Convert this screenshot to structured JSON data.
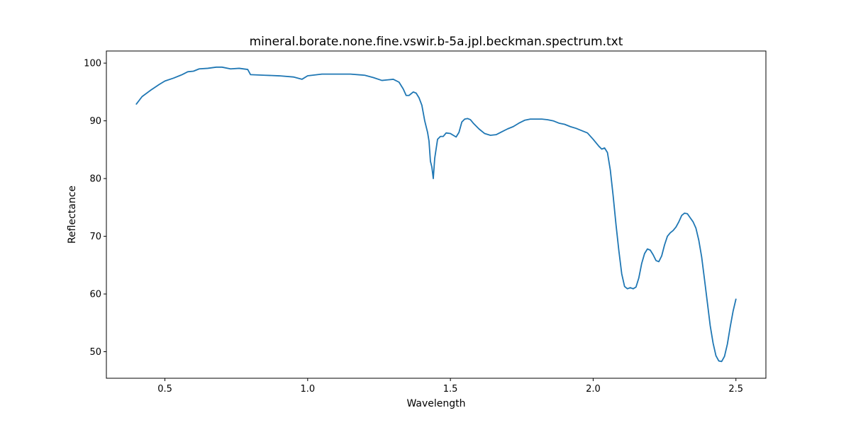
{
  "chart_data": {
    "type": "line",
    "title": "mineral.borate.none.fine.vswir.b-5a.jpl.beckman.spectrum.txt",
    "xlabel": "Wavelength",
    "ylabel": "Reflectance",
    "xlim": [
      0.295,
      2.605
    ],
    "ylim": [
      45.4,
      102.1
    ],
    "xticks": [
      0.5,
      1.0,
      1.5,
      2.0,
      2.5
    ],
    "xtick_labels": [
      "0.5",
      "1.0",
      "1.5",
      "2.0",
      "2.5"
    ],
    "yticks": [
      50,
      60,
      70,
      80,
      90,
      100
    ],
    "ytick_labels": [
      "50",
      "60",
      "70",
      "80",
      "90",
      "100"
    ],
    "grid": false,
    "series": [
      {
        "color": "#1f77b4",
        "points": [
          [
            0.4,
            92.9
          ],
          [
            0.42,
            94.2
          ],
          [
            0.45,
            95.3
          ],
          [
            0.48,
            96.3
          ],
          [
            0.5,
            96.9
          ],
          [
            0.53,
            97.4
          ],
          [
            0.56,
            98.0
          ],
          [
            0.58,
            98.5
          ],
          [
            0.6,
            98.6
          ],
          [
            0.62,
            99.0
          ],
          [
            0.65,
            99.1
          ],
          [
            0.68,
            99.3
          ],
          [
            0.7,
            99.3
          ],
          [
            0.73,
            99.0
          ],
          [
            0.76,
            99.1
          ],
          [
            0.79,
            98.9
          ],
          [
            0.8,
            98.0
          ],
          [
            0.85,
            97.9
          ],
          [
            0.9,
            97.8
          ],
          [
            0.95,
            97.6
          ],
          [
            0.98,
            97.2
          ],
          [
            1.0,
            97.8
          ],
          [
            1.05,
            98.1
          ],
          [
            1.1,
            98.1
          ],
          [
            1.15,
            98.1
          ],
          [
            1.2,
            97.9
          ],
          [
            1.23,
            97.5
          ],
          [
            1.26,
            97.0
          ],
          [
            1.28,
            97.1
          ],
          [
            1.3,
            97.2
          ],
          [
            1.32,
            96.7
          ],
          [
            1.335,
            95.5
          ],
          [
            1.345,
            94.4
          ],
          [
            1.355,
            94.4
          ],
          [
            1.37,
            95.0
          ],
          [
            1.38,
            94.8
          ],
          [
            1.39,
            94.0
          ],
          [
            1.4,
            92.7
          ],
          [
            1.41,
            90.0
          ],
          [
            1.42,
            88.0
          ],
          [
            1.425,
            86.5
          ],
          [
            1.43,
            83.0
          ],
          [
            1.435,
            82.0
          ],
          [
            1.44,
            80.0
          ],
          [
            1.445,
            83.5
          ],
          [
            1.455,
            86.8
          ],
          [
            1.465,
            87.3
          ],
          [
            1.475,
            87.3
          ],
          [
            1.485,
            87.9
          ],
          [
            1.5,
            87.8
          ],
          [
            1.51,
            87.5
          ],
          [
            1.52,
            87.2
          ],
          [
            1.53,
            88.0
          ],
          [
            1.54,
            89.8
          ],
          [
            1.55,
            90.3
          ],
          [
            1.56,
            90.4
          ],
          [
            1.57,
            90.2
          ],
          [
            1.58,
            89.6
          ],
          [
            1.6,
            88.6
          ],
          [
            1.62,
            87.8
          ],
          [
            1.64,
            87.5
          ],
          [
            1.66,
            87.6
          ],
          [
            1.68,
            88.1
          ],
          [
            1.7,
            88.6
          ],
          [
            1.72,
            89.0
          ],
          [
            1.74,
            89.6
          ],
          [
            1.76,
            90.1
          ],
          [
            1.78,
            90.3
          ],
          [
            1.8,
            90.3
          ],
          [
            1.82,
            90.3
          ],
          [
            1.84,
            90.2
          ],
          [
            1.86,
            90.0
          ],
          [
            1.88,
            89.6
          ],
          [
            1.9,
            89.4
          ],
          [
            1.92,
            89.0
          ],
          [
            1.94,
            88.7
          ],
          [
            1.96,
            88.3
          ],
          [
            1.98,
            87.9
          ],
          [
            2.0,
            86.8
          ],
          [
            2.02,
            85.6
          ],
          [
            2.03,
            85.1
          ],
          [
            2.04,
            85.3
          ],
          [
            2.05,
            84.5
          ],
          [
            2.06,
            81.5
          ],
          [
            2.07,
            77.0
          ],
          [
            2.08,
            72.0
          ],
          [
            2.09,
            67.5
          ],
          [
            2.1,
            63.5
          ],
          [
            2.11,
            61.3
          ],
          [
            2.12,
            60.9
          ],
          [
            2.13,
            61.1
          ],
          [
            2.14,
            60.9
          ],
          [
            2.15,
            61.2
          ],
          [
            2.16,
            62.8
          ],
          [
            2.17,
            65.3
          ],
          [
            2.18,
            67.0
          ],
          [
            2.19,
            67.8
          ],
          [
            2.2,
            67.6
          ],
          [
            2.21,
            66.8
          ],
          [
            2.22,
            65.8
          ],
          [
            2.23,
            65.6
          ],
          [
            2.24,
            66.6
          ],
          [
            2.25,
            68.5
          ],
          [
            2.26,
            70.0
          ],
          [
            2.27,
            70.6
          ],
          [
            2.28,
            71.0
          ],
          [
            2.29,
            71.6
          ],
          [
            2.3,
            72.5
          ],
          [
            2.31,
            73.6
          ],
          [
            2.32,
            74.0
          ],
          [
            2.33,
            73.9
          ],
          [
            2.34,
            73.2
          ],
          [
            2.35,
            72.5
          ],
          [
            2.36,
            71.4
          ],
          [
            2.37,
            69.3
          ],
          [
            2.38,
            66.4
          ],
          [
            2.39,
            62.5
          ],
          [
            2.4,
            58.5
          ],
          [
            2.41,
            54.5
          ],
          [
            2.42,
            51.5
          ],
          [
            2.43,
            49.3
          ],
          [
            2.44,
            48.4
          ],
          [
            2.45,
            48.3
          ],
          [
            2.46,
            49.2
          ],
          [
            2.47,
            51.3
          ],
          [
            2.48,
            54.3
          ],
          [
            2.49,
            57.0
          ],
          [
            2.5,
            59.1
          ]
        ]
      }
    ]
  }
}
